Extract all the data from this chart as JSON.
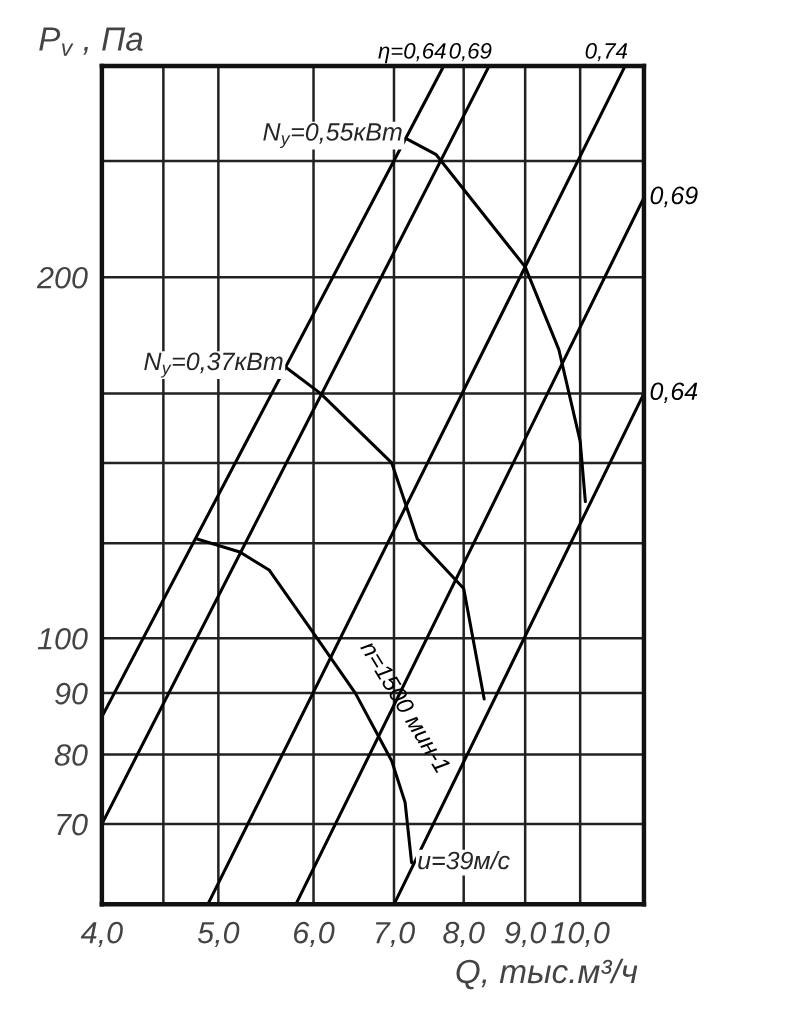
{
  "chart_data": {
    "type": "line",
    "xlabel": "Q, тыс.м³/ч",
    "ylabel": "P$_{v}$ , Па",
    "log": "xy",
    "grid": true,
    "legend": false,
    "line_style": "solid",
    "marker": "none",
    "xlim": [
      4.0,
      11.3
    ],
    "ylim": [
      60,
      300
    ],
    "xticks": [
      {
        "value": 4.0,
        "label": "4,0"
      },
      {
        "value": 4.5,
        "label": null
      },
      {
        "value": 5.0,
        "label": "5,0"
      },
      {
        "value": 6.0,
        "label": "6,0"
      },
      {
        "value": 7.0,
        "label": "7,0"
      },
      {
        "value": 8.0,
        "label": "8,0"
      },
      {
        "value": 9.0,
        "label": "9,0"
      },
      {
        "value": 10.0,
        "label": "10,0"
      }
    ],
    "yticks": [
      70,
      80,
      90,
      100,
      {
        "value": 120,
        "label": null
      },
      {
        "value": 140,
        "label": null
      },
      {
        "value": 160,
        "label": null
      },
      200,
      {
        "value": 250,
        "label": null
      }
    ],
    "series": [
      {
        "name": "η=0,64",
        "color": "#000000",
        "x": [
          4.0,
          7.7
        ],
        "values": [
          86,
          300
        ]
      },
      {
        "name": "0,69",
        "color": "#000000",
        "x": [
          4.0,
          8.4
        ],
        "values": [
          70,
          300
        ]
      },
      {
        "name": "0,74",
        "color": "#000000",
        "x": [
          4.9,
          10.9
        ],
        "values": [
          60,
          300
        ]
      },
      {
        "name": "0,69",
        "color": "#000000",
        "x": [
          5.8,
          11.3
        ],
        "values": [
          60,
          233
        ]
      },
      {
        "name": "0,64",
        "color": "#000000",
        "x": [
          7.0,
          11.3
        ],
        "values": [
          60,
          160
        ]
      },
      {
        "color": "#000000",
        "x": [
          7.16,
          7.59,
          9.0,
          9.6,
          10.0,
          10.1
        ],
        "values": [
          261,
          253,
          204,
          174,
          146,
          130
        ]
      },
      {
        "color": "#000000",
        "x": [
          5.7,
          6.08,
          6.97,
          7.32,
          8.0,
          8.32
        ],
        "values": [
          168,
          160,
          140,
          121,
          110,
          89
        ]
      },
      {
        "name": "n=1500 мин-1",
        "color": "#000000",
        "x": [
          4.8,
          5.21,
          5.51,
          6.0,
          6.5,
          6.97,
          7.15,
          7.24
        ],
        "values": [
          121,
          118,
          114,
          101,
          90,
          79,
          73,
          65
        ]
      }
    ],
    "annotations": [
      {
        "text": "N$_{у}$=0,55кВт",
        "x": 7.16,
        "y": 261
      },
      {
        "text": "N$_{у}$=0,37кВт",
        "x": 5.7,
        "y": 168
      },
      {
        "text": "u=39м/с",
        "x": 7.24,
        "y": 65
      }
    ]
  }
}
